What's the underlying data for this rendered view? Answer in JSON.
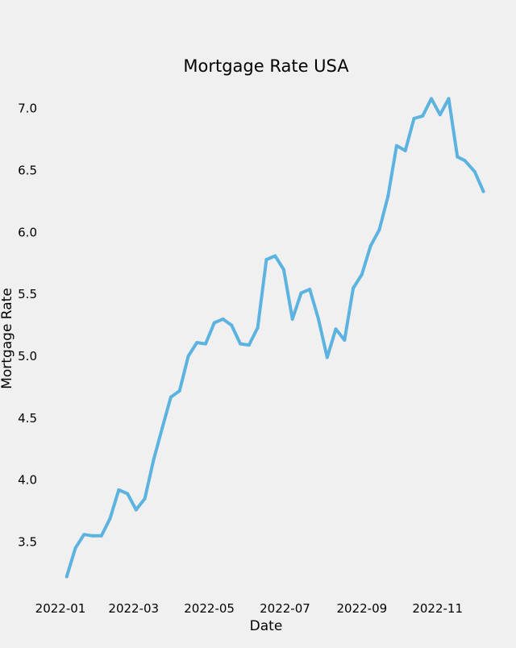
{
  "chart_data": {
    "type": "line",
    "title": "Mortgage Rate USA",
    "xlabel": "Date",
    "ylabel": "Mortgage Rate",
    "grid": false,
    "line_color": "#5db3e0",
    "background_color": "#f0f0f0",
    "xlim": [
      "2021-12-19",
      "2022-12-18"
    ],
    "ylim": [
      3.08,
      7.18
    ],
    "x_ticks": [
      "2022-01",
      "2022-03",
      "2022-05",
      "2022-07",
      "2022-09",
      "2022-11"
    ],
    "y_ticks": [
      "3.5",
      "4.0",
      "4.5",
      "5.0",
      "5.5",
      "6.0",
      "6.5",
      "7.0"
    ],
    "series": [
      {
        "x": [
          "2022-01-06",
          "2022-01-13",
          "2022-01-20",
          "2022-01-27",
          "2022-02-03",
          "2022-02-10",
          "2022-02-17",
          "2022-02-24",
          "2022-03-03",
          "2022-03-10",
          "2022-03-17",
          "2022-03-24",
          "2022-03-31",
          "2022-04-07",
          "2022-04-14",
          "2022-04-21",
          "2022-04-28",
          "2022-05-05",
          "2022-05-12",
          "2022-05-19",
          "2022-05-26",
          "2022-06-02",
          "2022-06-09",
          "2022-06-16",
          "2022-06-23",
          "2022-06-30",
          "2022-07-07",
          "2022-07-14",
          "2022-07-21",
          "2022-07-28",
          "2022-08-04",
          "2022-08-11",
          "2022-08-18",
          "2022-08-25",
          "2022-09-01",
          "2022-09-08",
          "2022-09-15",
          "2022-09-22",
          "2022-09-29",
          "2022-10-06",
          "2022-10-13",
          "2022-10-20",
          "2022-10-27",
          "2022-11-03",
          "2022-11-10",
          "2022-11-17",
          "2022-11-23",
          "2022-12-01",
          "2022-12-08"
        ],
        "y": [
          3.22,
          3.45,
          3.56,
          3.55,
          3.55,
          3.69,
          3.92,
          3.89,
          3.76,
          3.85,
          4.16,
          4.42,
          4.67,
          4.72,
          5.0,
          5.11,
          5.1,
          5.27,
          5.3,
          5.25,
          5.1,
          5.09,
          5.23,
          5.78,
          5.81,
          5.7,
          5.3,
          5.51,
          5.54,
          5.3,
          4.99,
          5.22,
          5.13,
          5.55,
          5.66,
          5.89,
          6.02,
          6.29,
          6.7,
          6.66,
          6.92,
          6.94,
          7.08,
          6.95,
          7.08,
          6.61,
          6.58,
          6.49,
          6.33
        ]
      }
    ]
  }
}
